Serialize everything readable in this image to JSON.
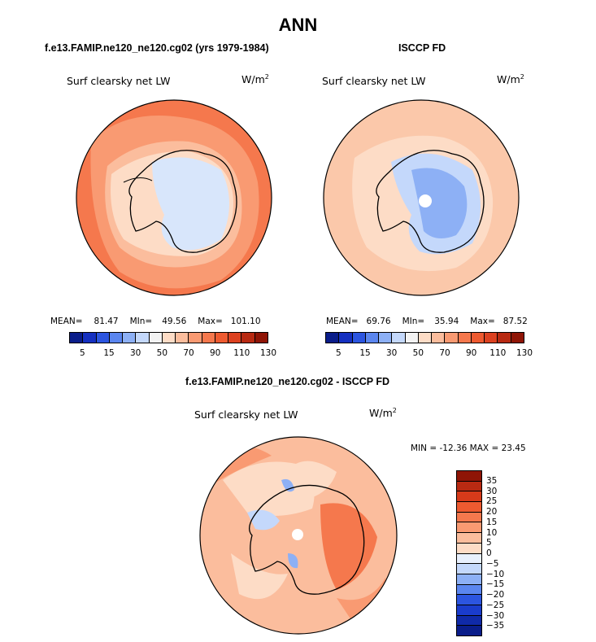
{
  "title": "ANN",
  "panels": [
    {
      "case_title": "f.e13.FAMIP.ne120_ne120.cg02 (yrs 1979-1984)",
      "label": "Surf clearsky net LW",
      "units_base": "W/m",
      "units_exp": "2",
      "mean_label": "MEAN=",
      "mean": "81.47",
      "min_label": "MIn=",
      "min": "49.56",
      "max_label": "Max=",
      "max": "101.10"
    },
    {
      "case_title": "ISCCP FD",
      "label": "Surf clearsky net LW",
      "units_base": "W/m",
      "units_exp": "2",
      "mean_label": "MEAN=",
      "mean": "69.76",
      "min_label": "MIn=",
      "min": "35.94",
      "max_label": "Max=",
      "max": "87.52"
    }
  ],
  "diff_panel": {
    "case_title": "f.e13.FAMIP.ne120_ne120.cg02 - ISCCP FD",
    "label": "Surf clearsky net LW",
    "units_base": "W/m",
    "units_exp": "2",
    "min_max_text": "MIN = -12.36 MAX =  23.45"
  },
  "colorbar_levels": [
    "5",
    "15",
    "30",
    "50",
    "70",
    "90",
    "110",
    "130"
  ],
  "colorbar_colors": [
    "#0a1d8a",
    "#1530c0",
    "#2c55e0",
    "#5b86ef",
    "#8db0f5",
    "#c4d8fb",
    "#f3f3f3",
    "#fddcc6",
    "#fbbd9d",
    "#f99a72",
    "#f5784d",
    "#ee5a30",
    "#dc4120",
    "#b82a12",
    "#8f1506"
  ],
  "diff_colorbar_levels": [
    "35",
    "30",
    "25",
    "20",
    "15",
    "10",
    "5",
    "0",
    "−5",
    "−10",
    "−15",
    "−20",
    "−25",
    "−30",
    "−35"
  ],
  "diff_colorbar_colors": [
    "#8f1506",
    "#b82a12",
    "#d63a1a",
    "#ee5a30",
    "#f5784d",
    "#f99a72",
    "#fbbd9d",
    "#fddcc6",
    "#e8f0fd",
    "#c4d8fb",
    "#8db0f5",
    "#5b86ef",
    "#2c55e0",
    "#1a3ccc",
    "#102aa8",
    "#0a1d8a"
  ]
}
